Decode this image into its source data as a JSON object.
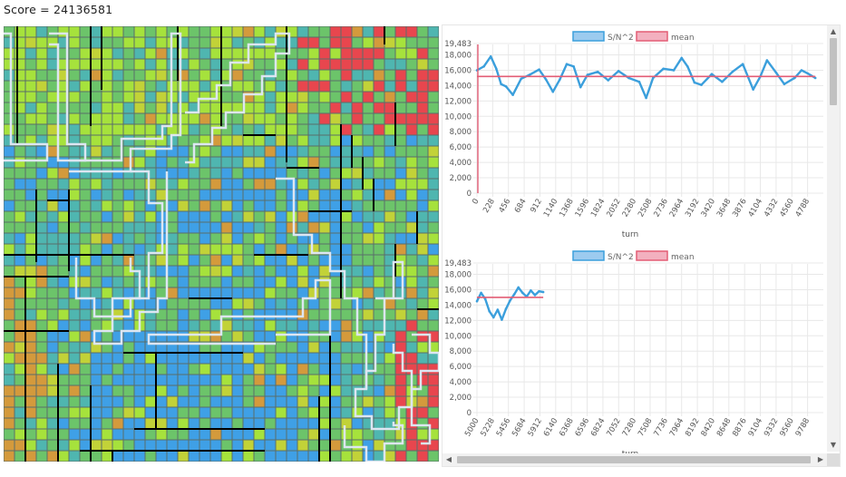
{
  "score_text": "Score = 24136581",
  "grid": {
    "n": 40,
    "seed": 7,
    "palette": {
      "blue": "#3fa0e6",
      "teal": "#4fb6b0",
      "green": "#6cc46a",
      "lime": "#a6e23c",
      "yellow_green": "#c2d238",
      "orange": "#d49a3c",
      "red": "#e8464e",
      "wall": "#000000",
      "path": "#dde6f2"
    }
  },
  "charts": {
    "legend_primary": "S/N^2",
    "legend_mean": "mean",
    "xlabel": "turn",
    "y_ticks": [
      "19,483",
      "18,000",
      "16,000",
      "14,000",
      "12,000",
      "10,000",
      "8,000",
      "6,000",
      "4,000",
      "2,000",
      "0"
    ],
    "top": {
      "x_ticks": [
        "0",
        "228",
        "456",
        "684",
        "912",
        "1140",
        "1368",
        "1596",
        "1824",
        "2052",
        "2280",
        "2508",
        "2736",
        "2964",
        "3192",
        "3420",
        "3648",
        "3876",
        "4104",
        "4332",
        "4560",
        "4788"
      ]
    },
    "bottom": {
      "x_ticks": [
        "5000",
        "5228",
        "5456",
        "5684",
        "5912",
        "6140",
        "6368",
        "6596",
        "6824",
        "7052",
        "7280",
        "7508",
        "7736",
        "7964",
        "8192",
        "8420",
        "8648",
        "8876",
        "9104",
        "9332",
        "9560",
        "9788"
      ]
    },
    "colors": {
      "series": "#3b9fdc",
      "series_fill": "#9ccbef",
      "mean": "#e35d75",
      "mean_fill": "#f3b0bf",
      "grid": "#e8e8e8",
      "axis_text": "#555555"
    }
  },
  "chart_data": [
    {
      "type": "line",
      "title": "",
      "xlabel": "turn",
      "ylabel": "",
      "ylim": [
        0,
        19483
      ],
      "series": [
        {
          "name": "S/N^2",
          "x": [
            0,
            100,
            200,
            280,
            350,
            420,
            520,
            640,
            760,
            900,
            1000,
            1100,
            1200,
            1300,
            1400,
            1500,
            1600,
            1750,
            1900,
            2050,
            2200,
            2350,
            2450,
            2550,
            2700,
            2850,
            2964,
            3050,
            3150,
            3250,
            3400,
            3550,
            3700,
            3850,
            4000,
            4104,
            4200,
            4332,
            4450,
            4600,
            4700,
            4788,
            4900
          ],
          "values": [
            16000,
            16500,
            17800,
            16200,
            14200,
            13900,
            12800,
            14900,
            15400,
            16100,
            14800,
            13200,
            14800,
            16800,
            16500,
            13800,
            15400,
            15800,
            14700,
            15900,
            15000,
            14500,
            12400,
            15000,
            16200,
            16000,
            17600,
            16500,
            14400,
            14100,
            15500,
            14500,
            15800,
            16800,
            13500,
            15200,
            17300,
            15700,
            14200,
            15000,
            16000,
            15600,
            15000
          ]
        },
        {
          "name": "mean",
          "x": [
            0,
            4900
          ],
          "values": [
            15200,
            15200
          ]
        }
      ],
      "x_ticks": [
        0,
        228,
        456,
        684,
        912,
        1140,
        1368,
        1596,
        1824,
        2052,
        2280,
        2508,
        2736,
        2964,
        3192,
        3420,
        3648,
        3876,
        4104,
        4332,
        4560,
        4788
      ]
    },
    {
      "type": "line",
      "title": "",
      "xlabel": "turn",
      "ylabel": "",
      "ylim": [
        0,
        19483
      ],
      "series": [
        {
          "name": "S/N^2",
          "x": [
            5000,
            5060,
            5120,
            5180,
            5240,
            5300,
            5360,
            5420,
            5480,
            5540,
            5600,
            5660,
            5720,
            5780,
            5840,
            5900,
            5960
          ],
          "values": [
            14500,
            15600,
            14800,
            13200,
            12400,
            13400,
            12100,
            13500,
            14600,
            15400,
            16300,
            15600,
            15100,
            15900,
            15300,
            15800,
            15700
          ]
        },
        {
          "name": "mean",
          "x": [
            5000,
            5960
          ],
          "values": [
            15000,
            15000
          ]
        }
      ],
      "x_ticks": [
        5000,
        5228,
        5456,
        5684,
        5912,
        6140,
        6368,
        6596,
        6824,
        7052,
        7280,
        7508,
        7736,
        7964,
        8192,
        8420,
        8648,
        8876,
        9104,
        9332,
        9560,
        9788
      ]
    }
  ]
}
